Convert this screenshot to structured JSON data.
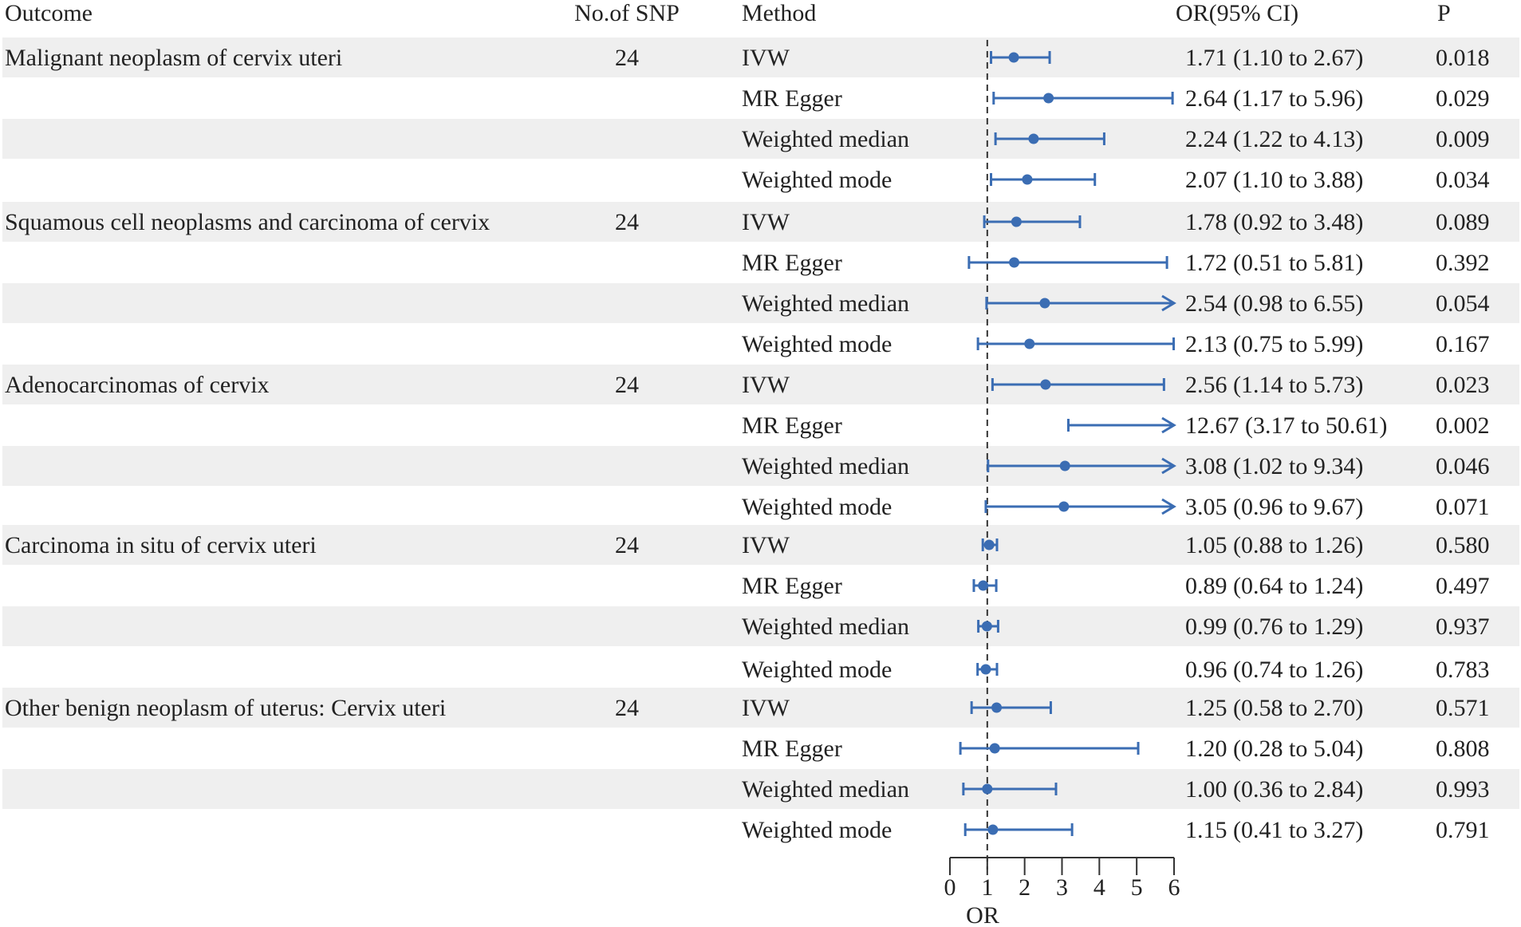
{
  "chart_data": {
    "type": "forest",
    "headers": {
      "outcome": "Outcome",
      "nsnp": "No.of SNP",
      "method": "Method",
      "or": "OR(95% CI)",
      "p": "P"
    },
    "groups": [
      {
        "outcome": "Malignant neoplasm of cervix uteri",
        "nsnp": "24",
        "rows": [
          {
            "method": "IVW",
            "or": 1.71,
            "lo": 1.1,
            "hi": 2.67,
            "or_text": "1.71 (1.10 to 2.67)",
            "p": "0.018"
          },
          {
            "method": "MR Egger",
            "or": 2.64,
            "lo": 1.17,
            "hi": 5.96,
            "or_text": "2.64 (1.17 to 5.96)",
            "p": "0.029"
          },
          {
            "method": "Weighted median",
            "or": 2.24,
            "lo": 1.22,
            "hi": 4.13,
            "or_text": "2.24 (1.22 to 4.13)",
            "p": "0.009"
          },
          {
            "method": "Weighted mode",
            "or": 2.07,
            "lo": 1.1,
            "hi": 3.88,
            "or_text": "2.07 (1.10 to 3.88)",
            "p": "0.034"
          }
        ]
      },
      {
        "outcome": "Squamous cell neoplasms and carcinoma of cervix",
        "nsnp": "24",
        "rows": [
          {
            "method": "IVW",
            "or": 1.78,
            "lo": 0.92,
            "hi": 3.48,
            "or_text": "1.78 (0.92 to 3.48)",
            "p": "0.089"
          },
          {
            "method": "MR Egger",
            "or": 1.72,
            "lo": 0.51,
            "hi": 5.81,
            "or_text": "1.72 (0.51 to 5.81)",
            "p": "0.392"
          },
          {
            "method": "Weighted median",
            "or": 2.54,
            "lo": 0.98,
            "hi": 6.55,
            "or_text": "2.54 (0.98 to 6.55)",
            "p": "0.054"
          },
          {
            "method": "Weighted mode",
            "or": 2.13,
            "lo": 0.75,
            "hi": 5.99,
            "or_text": "2.13 (0.75 to 5.99)",
            "p": "0.167"
          }
        ]
      },
      {
        "outcome": "Adenocarcinomas of cervix",
        "nsnp": "24",
        "rows": [
          {
            "method": "IVW",
            "or": 2.56,
            "lo": 1.14,
            "hi": 5.73,
            "or_text": "2.56 (1.14 to 5.73)",
            "p": "0.023"
          },
          {
            "method": "MR Egger",
            "or": 12.67,
            "lo": 3.17,
            "hi": 50.61,
            "or_text": "12.67 (3.17 to 50.61)",
            "p": "0.002"
          },
          {
            "method": "Weighted median",
            "or": 3.08,
            "lo": 1.02,
            "hi": 9.34,
            "or_text": "3.08 (1.02 to 9.34)",
            "p": "0.046"
          },
          {
            "method": "Weighted mode",
            "or": 3.05,
            "lo": 0.96,
            "hi": 9.67,
            "or_text": "3.05 (0.96 to 9.67)",
            "p": "0.071"
          }
        ]
      },
      {
        "outcome": "Carcinoma in situ of cervix uteri",
        "nsnp": "24",
        "rows": [
          {
            "method": "IVW",
            "or": 1.05,
            "lo": 0.88,
            "hi": 1.26,
            "or_text": "1.05 (0.88 to 1.26)",
            "p": "0.580"
          },
          {
            "method": "MR Egger",
            "or": 0.89,
            "lo": 0.64,
            "hi": 1.24,
            "or_text": "0.89 (0.64 to 1.24)",
            "p": "0.497"
          },
          {
            "method": "Weighted median",
            "or": 0.99,
            "lo": 0.76,
            "hi": 1.29,
            "or_text": "0.99 (0.76 to 1.29)",
            "p": "0.937"
          },
          {
            "method": "Weighted mode",
            "or": 0.96,
            "lo": 0.74,
            "hi": 1.26,
            "or_text": "0.96 (0.74 to 1.26)",
            "p": "0.783"
          }
        ]
      },
      {
        "outcome": "Other benign neoplasm of uterus: Cervix uteri",
        "nsnp": "24",
        "rows": [
          {
            "method": "IVW",
            "or": 1.25,
            "lo": 0.58,
            "hi": 2.7,
            "or_text": "1.25 (0.58 to 2.70)",
            "p": "0.571"
          },
          {
            "method": "MR Egger",
            "or": 1.2,
            "lo": 0.28,
            "hi": 5.04,
            "or_text": "1.20 (0.28 to 5.04)",
            "p": "0.808"
          },
          {
            "method": "Weighted median",
            "or": 1.0,
            "lo": 0.36,
            "hi": 2.84,
            "or_text": "1.00 (0.36 to 2.84)",
            "p": "0.993"
          },
          {
            "method": "Weighted mode",
            "or": 1.15,
            "lo": 0.41,
            "hi": 3.27,
            "or_text": "1.15 (0.41 to 3.27)",
            "p": "0.791"
          }
        ]
      }
    ],
    "xlim": [
      0,
      6
    ],
    "ticks": [
      "0",
      "1",
      "2",
      "3",
      "4",
      "5",
      "6"
    ],
    "xlabel": "OR",
    "reference_line": 1
  },
  "colors": {
    "marker": "#3b6db3",
    "stripe": "#efefef",
    "text": "#222222",
    "axis": "#333333"
  }
}
